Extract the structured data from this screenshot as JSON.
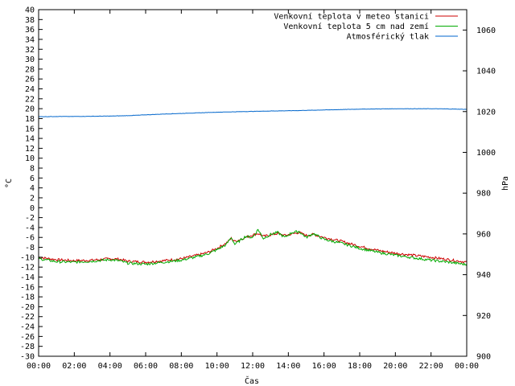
{
  "chart_data": {
    "type": "line",
    "xlabel": "Čas",
    "ylabel": "°C",
    "y2label": "hPa",
    "xlim": [
      0,
      24
    ],
    "ylim": [
      -30,
      40
    ],
    "y2lim": [
      900,
      1070
    ],
    "grid": false,
    "legend_position": "top-right",
    "x_ticks": [
      "00:00",
      "02:00",
      "04:00",
      "06:00",
      "08:00",
      "10:00",
      "12:00",
      "14:00",
      "16:00",
      "18:00",
      "20:00",
      "22:00",
      "00:00"
    ],
    "y_ticks": [
      40,
      38,
      36,
      34,
      32,
      30,
      28,
      26,
      24,
      22,
      20,
      18,
      16,
      14,
      12,
      10,
      8,
      6,
      4,
      2,
      0,
      -2,
      -4,
      -6,
      -8,
      -10,
      -12,
      -14,
      -16,
      -18,
      -20,
      -22,
      -24,
      -26,
      -28,
      -30
    ],
    "y2_ticks": [
      1060,
      1040,
      1020,
      1000,
      980,
      960,
      940,
      920,
      900
    ],
    "series": [
      {
        "name": "Venkovní teplota v meteo stanici",
        "axis": "y",
        "color": "#cc0000",
        "x": [
          0,
          1,
          2,
          3,
          4,
          4.5,
          5,
          6,
          7,
          8,
          9,
          9.5,
          10,
          10.5,
          10.8,
          11,
          11.3,
          11.6,
          12,
          12.3,
          12.6,
          13,
          13.4,
          13.8,
          14.2,
          14.6,
          15,
          15.4,
          15.8,
          16,
          17,
          18,
          19,
          20,
          21,
          22,
          23,
          24
        ],
        "y": [
          -10,
          -10.5,
          -10.7,
          -10.6,
          -10.3,
          -10.4,
          -10.8,
          -11,
          -10.7,
          -10.3,
          -9.5,
          -9,
          -8.2,
          -7.2,
          -6.2,
          -6.8,
          -6.4,
          -6,
          -5.5,
          -5.2,
          -5.8,
          -5.5,
          -5.2,
          -5.6,
          -5.3,
          -5.0,
          -5.6,
          -5.4,
          -5.8,
          -6,
          -6.8,
          -7.8,
          -8.6,
          -9.2,
          -9.6,
          -10,
          -10.5,
          -11
        ]
      },
      {
        "name": "Venkovní teplota 5 cm nad zemí",
        "axis": "y",
        "color": "#00aa00",
        "x": [
          0,
          1,
          2,
          3,
          4,
          4.5,
          5,
          6,
          7,
          8,
          9,
          9.5,
          10,
          10.5,
          10.8,
          11,
          11.3,
          11.6,
          12,
          12.3,
          12.6,
          13,
          13.4,
          13.8,
          14.2,
          14.6,
          15,
          15.4,
          15.8,
          16,
          17,
          18,
          19,
          20,
          21,
          22,
          23,
          24
        ],
        "y": [
          -10.3,
          -10.9,
          -11,
          -10.8,
          -10.5,
          -10.7,
          -11.2,
          -11.4,
          -11,
          -10.6,
          -9.8,
          -9.3,
          -8.5,
          -7.5,
          -6.0,
          -7.4,
          -6.6,
          -5.8,
          -6.0,
          -4.4,
          -6.2,
          -5.4,
          -5.0,
          -6.0,
          -5.0,
          -4.8,
          -6.0,
          -5.2,
          -6.0,
          -6.4,
          -7.2,
          -8.2,
          -9.0,
          -9.6,
          -10.1,
          -10.6,
          -11,
          -11.5
        ]
      },
      {
        "name": "Atmosférický tlak",
        "axis": "y2",
        "color": "#0066cc",
        "x": [
          0,
          1,
          2,
          3,
          4,
          5,
          6,
          7,
          8,
          9,
          10,
          11,
          12,
          13,
          14,
          15,
          16,
          17,
          18,
          19,
          20,
          21,
          22,
          23,
          24
        ],
        "y": [
          1017.5,
          1017.6,
          1017.6,
          1017.7,
          1017.8,
          1018.0,
          1018.4,
          1018.8,
          1019.1,
          1019.4,
          1019.7,
          1019.9,
          1020.1,
          1020.3,
          1020.4,
          1020.6,
          1020.8,
          1021.0,
          1021.2,
          1021.3,
          1021.4,
          1021.4,
          1021.4,
          1021.3,
          1021.1
        ]
      }
    ]
  }
}
